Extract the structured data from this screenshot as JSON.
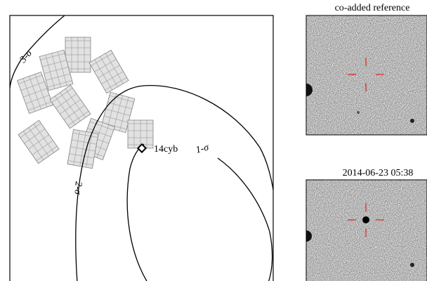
{
  "map": {
    "labels": {
      "sigma3": "3-σ",
      "sigma2": "2-σ",
      "sigma1": "1-σ",
      "source": "14cyb"
    }
  },
  "panels": [
    {
      "title": "co-added reference"
    },
    {
      "title": "2014-06-23 05:38"
    }
  ]
}
